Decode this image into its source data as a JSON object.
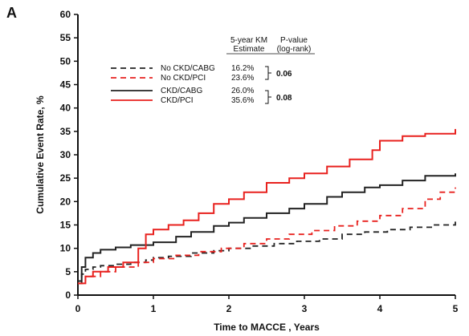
{
  "panel_label": "A",
  "legend_header": {
    "estimate_line1": "5-year KM",
    "estimate_line2": "Estimate",
    "pvalue_line1": "P-value",
    "pvalue_line2": "(log-rank)"
  },
  "pvalues": [
    "0.06",
    "0.08"
  ],
  "colors": {
    "black": "#222222",
    "red": "#e8211e"
  },
  "chart_data": {
    "type": "line",
    "title": "",
    "xlabel": "Time to MACCE , Years",
    "ylabel": "Cumulative Event Rate, %",
    "xlim": [
      0,
      5
    ],
    "ylim": [
      0,
      60
    ],
    "x_ticks": [
      "0",
      "1",
      "2",
      "3",
      "4",
      "5"
    ],
    "y_ticks": [
      "0",
      "5",
      "10",
      "15",
      "20",
      "25",
      "30",
      "35",
      "40",
      "45",
      "50",
      "55",
      "60"
    ],
    "grid": false,
    "legend_position": "top-center",
    "series": [
      {
        "name": "No CKD/CABG",
        "estimate": "16.2%",
        "color": "#222222",
        "style": "dashed",
        "x": [
          0,
          0.05,
          0.1,
          0.2,
          0.3,
          0.5,
          0.7,
          0.9,
          1.0,
          1.2,
          1.5,
          1.8,
          2.0,
          2.3,
          2.6,
          2.9,
          3.2,
          3.5,
          3.8,
          4.1,
          4.4,
          4.7,
          5.0
        ],
        "y": [
          2.5,
          4.5,
          5.5,
          6.0,
          6.3,
          6.6,
          7.0,
          7.5,
          8.0,
          8.3,
          9.0,
          9.5,
          10.0,
          10.5,
          11.0,
          11.5,
          12.0,
          13.0,
          13.5,
          14.0,
          14.5,
          15.0,
          15.8
        ]
      },
      {
        "name": "No CKD/PCI",
        "estimate": "23.6%",
        "color": "#e8211e",
        "style": "dashed",
        "x": [
          0,
          0.1,
          0.3,
          0.5,
          0.8,
          1.0,
          1.3,
          1.6,
          1.9,
          2.2,
          2.5,
          2.8,
          3.1,
          3.4,
          3.7,
          4.0,
          4.3,
          4.6,
          4.8,
          5.0
        ],
        "y": [
          2.5,
          4.0,
          5.0,
          6.0,
          7.0,
          7.8,
          8.5,
          9.3,
          10.0,
          11.0,
          12.0,
          13.0,
          13.8,
          14.8,
          15.8,
          17.0,
          18.5,
          20.5,
          22.0,
          23.0
        ]
      },
      {
        "name": "CKD/CABG",
        "estimate": "26.0%",
        "color": "#222222",
        "style": "solid",
        "x": [
          0,
          0.05,
          0.1,
          0.2,
          0.3,
          0.5,
          0.7,
          1.0,
          1.3,
          1.5,
          1.8,
          2.0,
          2.2,
          2.5,
          2.8,
          3.0,
          3.3,
          3.5,
          3.8,
          4.0,
          4.3,
          4.6,
          5.0
        ],
        "y": [
          3.0,
          6.0,
          8.0,
          9.0,
          9.7,
          10.2,
          10.7,
          11.3,
          12.5,
          13.5,
          14.8,
          15.5,
          16.5,
          17.5,
          18.5,
          19.5,
          21.0,
          22.0,
          23.0,
          23.5,
          24.5,
          25.5,
          26.0
        ]
      },
      {
        "name": "CKD/PCI",
        "estimate": "35.6%",
        "color": "#e8211e",
        "style": "solid",
        "x": [
          0,
          0.1,
          0.2,
          0.4,
          0.6,
          0.8,
          0.9,
          1.0,
          1.2,
          1.4,
          1.6,
          1.8,
          2.0,
          2.2,
          2.5,
          2.8,
          3.0,
          3.3,
          3.6,
          3.9,
          4.0,
          4.3,
          4.6,
          5.0
        ],
        "y": [
          2.5,
          4.0,
          5.0,
          6.0,
          7.0,
          10.0,
          13.0,
          14.0,
          15.0,
          16.0,
          17.5,
          19.5,
          20.5,
          22.0,
          24.0,
          25.0,
          26.0,
          27.5,
          29.0,
          31.0,
          33.0,
          34.0,
          34.5,
          35.5
        ]
      }
    ]
  }
}
